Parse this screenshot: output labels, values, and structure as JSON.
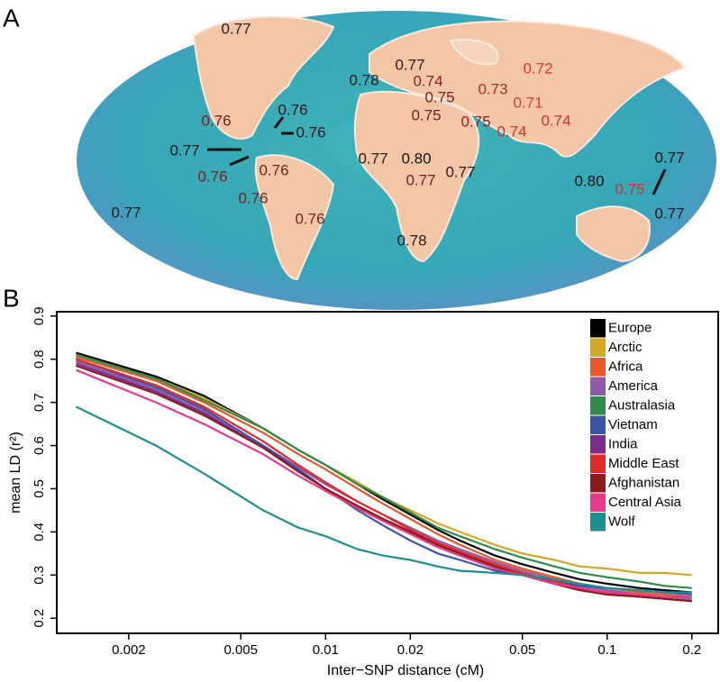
{
  "chart_data": [
    {
      "type": "map",
      "panel": "A",
      "labels": [
        {
          "value": 0.77,
          "color": "#2a1a1a"
        },
        {
          "value": 0.77,
          "color": "#3a1515"
        },
        {
          "value": 0.78,
          "color": "#2a1a1a"
        },
        {
          "value": 0.74,
          "color": "#8a2020"
        },
        {
          "value": 0.75,
          "color": "#7a1e1e"
        },
        {
          "value": 0.72,
          "color": "#d63a3a"
        },
        {
          "value": 0.73,
          "color": "#b02a2a"
        },
        {
          "value": 0.71,
          "color": "#d63a3a"
        },
        {
          "value": 0.75,
          "color": "#7a1e1e"
        },
        {
          "value": 0.75,
          "color": "#8a2020"
        },
        {
          "value": 0.74,
          "color": "#c83232"
        },
        {
          "value": 0.74,
          "color": "#c83232"
        },
        {
          "value": 0.76,
          "color": "#7a1e1e"
        },
        {
          "value": 0.76,
          "color": "#3a1515"
        },
        {
          "value": 0.76,
          "color": "#3a1515"
        },
        {
          "value": 0.77,
          "color": "#1a1a1a"
        },
        {
          "value": 0.76,
          "color": "#7a1e1e"
        },
        {
          "value": 0.76,
          "color": "#7a1e1e"
        },
        {
          "value": 0.77,
          "color": "#2a1a1a"
        },
        {
          "value": 0.8,
          "label": "0.80",
          "color": "#111111"
        },
        {
          "value": 0.77,
          "color": "#7a1e1e"
        },
        {
          "value": 0.77,
          "color": "#3a1515"
        },
        {
          "value": 0.76,
          "color": "#7a1e1e"
        },
        {
          "value": 0.76,
          "color": "#7a1e1e"
        },
        {
          "value": 0.77,
          "color": "#2a1a1a"
        },
        {
          "value": 0.78,
          "color": "#2a1a1a"
        },
        {
          "value": 0.8,
          "label": "0.80",
          "color": "#111111"
        },
        {
          "value": 0.75,
          "color": "#c83232"
        },
        {
          "value": 0.77,
          "color": "#111111"
        },
        {
          "value": 0.77,
          "color": "#2a1a1a"
        }
      ]
    },
    {
      "type": "line",
      "panel": "B",
      "x_label": "Inter−SNP distance (cM)",
      "y_label": "mean LD (r²)",
      "log_x": true,
      "legend": "top-right",
      "xlim": [
        0.00111,
        0.248
      ],
      "ylim": [
        0.165,
        0.91
      ],
      "xticks": [
        0.002,
        0.005,
        0.01,
        0.02,
        0.05,
        0.1,
        0.2
      ],
      "yticks": [
        0.2,
        0.3,
        0.4,
        0.5,
        0.6,
        0.7,
        0.8,
        0.9
      ],
      "x": [
        0.0013,
        0.0025,
        0.0037,
        0.006,
        0.008,
        0.01,
        0.013,
        0.016,
        0.02,
        0.025,
        0.03,
        0.04,
        0.05,
        0.065,
        0.08,
        0.1,
        0.13,
        0.16,
        0.2
      ],
      "series": [
        {
          "name": "Europe",
          "color": "#000000",
          "values": [
            0.815,
            0.76,
            0.715,
            0.64,
            0.59,
            0.555,
            0.51,
            0.475,
            0.44,
            0.405,
            0.38,
            0.345,
            0.325,
            0.305,
            0.29,
            0.28,
            0.27,
            0.265,
            0.26
          ]
        },
        {
          "name": "Arctic",
          "color": "#d4a62a",
          "values": [
            0.81,
            0.755,
            0.71,
            0.64,
            0.59,
            0.555,
            0.515,
            0.48,
            0.45,
            0.42,
            0.4,
            0.37,
            0.35,
            0.335,
            0.32,
            0.315,
            0.305,
            0.305,
            0.3
          ]
        },
        {
          "name": "Africa",
          "color": "#e8562a",
          "values": [
            0.805,
            0.75,
            0.7,
            0.63,
            0.58,
            0.545,
            0.5,
            0.465,
            0.43,
            0.395,
            0.37,
            0.335,
            0.315,
            0.295,
            0.28,
            0.27,
            0.26,
            0.255,
            0.25
          ]
        },
        {
          "name": "America",
          "color": "#8e5aa8",
          "values": [
            0.795,
            0.73,
            0.68,
            0.6,
            0.55,
            0.51,
            0.47,
            0.44,
            0.41,
            0.38,
            0.36,
            0.33,
            0.31,
            0.29,
            0.275,
            0.265,
            0.255,
            0.25,
            0.245
          ]
        },
        {
          "name": "Australasia",
          "color": "#2e8b4a",
          "values": [
            0.81,
            0.755,
            0.705,
            0.64,
            0.59,
            0.555,
            0.51,
            0.48,
            0.445,
            0.41,
            0.39,
            0.36,
            0.34,
            0.32,
            0.305,
            0.295,
            0.285,
            0.275,
            0.27
          ]
        },
        {
          "name": "Vietnam",
          "color": "#3a55a8",
          "values": [
            0.8,
            0.735,
            0.685,
            0.6,
            0.545,
            0.5,
            0.45,
            0.415,
            0.38,
            0.35,
            0.335,
            0.31,
            0.3,
            0.285,
            0.275,
            0.27,
            0.265,
            0.26,
            0.255
          ]
        },
        {
          "name": "India",
          "color": "#7b2a8e",
          "values": [
            0.79,
            0.725,
            0.675,
            0.595,
            0.54,
            0.5,
            0.46,
            0.43,
            0.4,
            0.37,
            0.35,
            0.32,
            0.3,
            0.28,
            0.265,
            0.255,
            0.25,
            0.245,
            0.24
          ]
        },
        {
          "name": "Middle East",
          "color": "#e02a2a",
          "values": [
            0.8,
            0.74,
            0.69,
            0.61,
            0.555,
            0.515,
            0.47,
            0.44,
            0.405,
            0.375,
            0.355,
            0.325,
            0.305,
            0.285,
            0.27,
            0.26,
            0.25,
            0.245,
            0.24
          ]
        },
        {
          "name": "Afghanistan",
          "color": "#8a1c1c",
          "values": [
            0.785,
            0.72,
            0.67,
            0.595,
            0.54,
            0.5,
            0.46,
            0.43,
            0.4,
            0.37,
            0.35,
            0.32,
            0.3,
            0.28,
            0.265,
            0.255,
            0.25,
            0.245,
            0.24
          ]
        },
        {
          "name": "Central Asia",
          "color": "#e8388a",
          "values": [
            0.775,
            0.7,
            0.65,
            0.58,
            0.53,
            0.495,
            0.455,
            0.425,
            0.395,
            0.365,
            0.345,
            0.315,
            0.3,
            0.28,
            0.27,
            0.26,
            0.255,
            0.25,
            0.25
          ]
        },
        {
          "name": "Wolf",
          "color": "#1f8e8e",
          "values": [
            0.69,
            0.6,
            0.535,
            0.45,
            0.41,
            0.39,
            0.36,
            0.345,
            0.335,
            0.32,
            0.31,
            0.305,
            0.3,
            0.29,
            0.28,
            0.27,
            0.265,
            0.26,
            0.26
          ]
        }
      ]
    }
  ]
}
